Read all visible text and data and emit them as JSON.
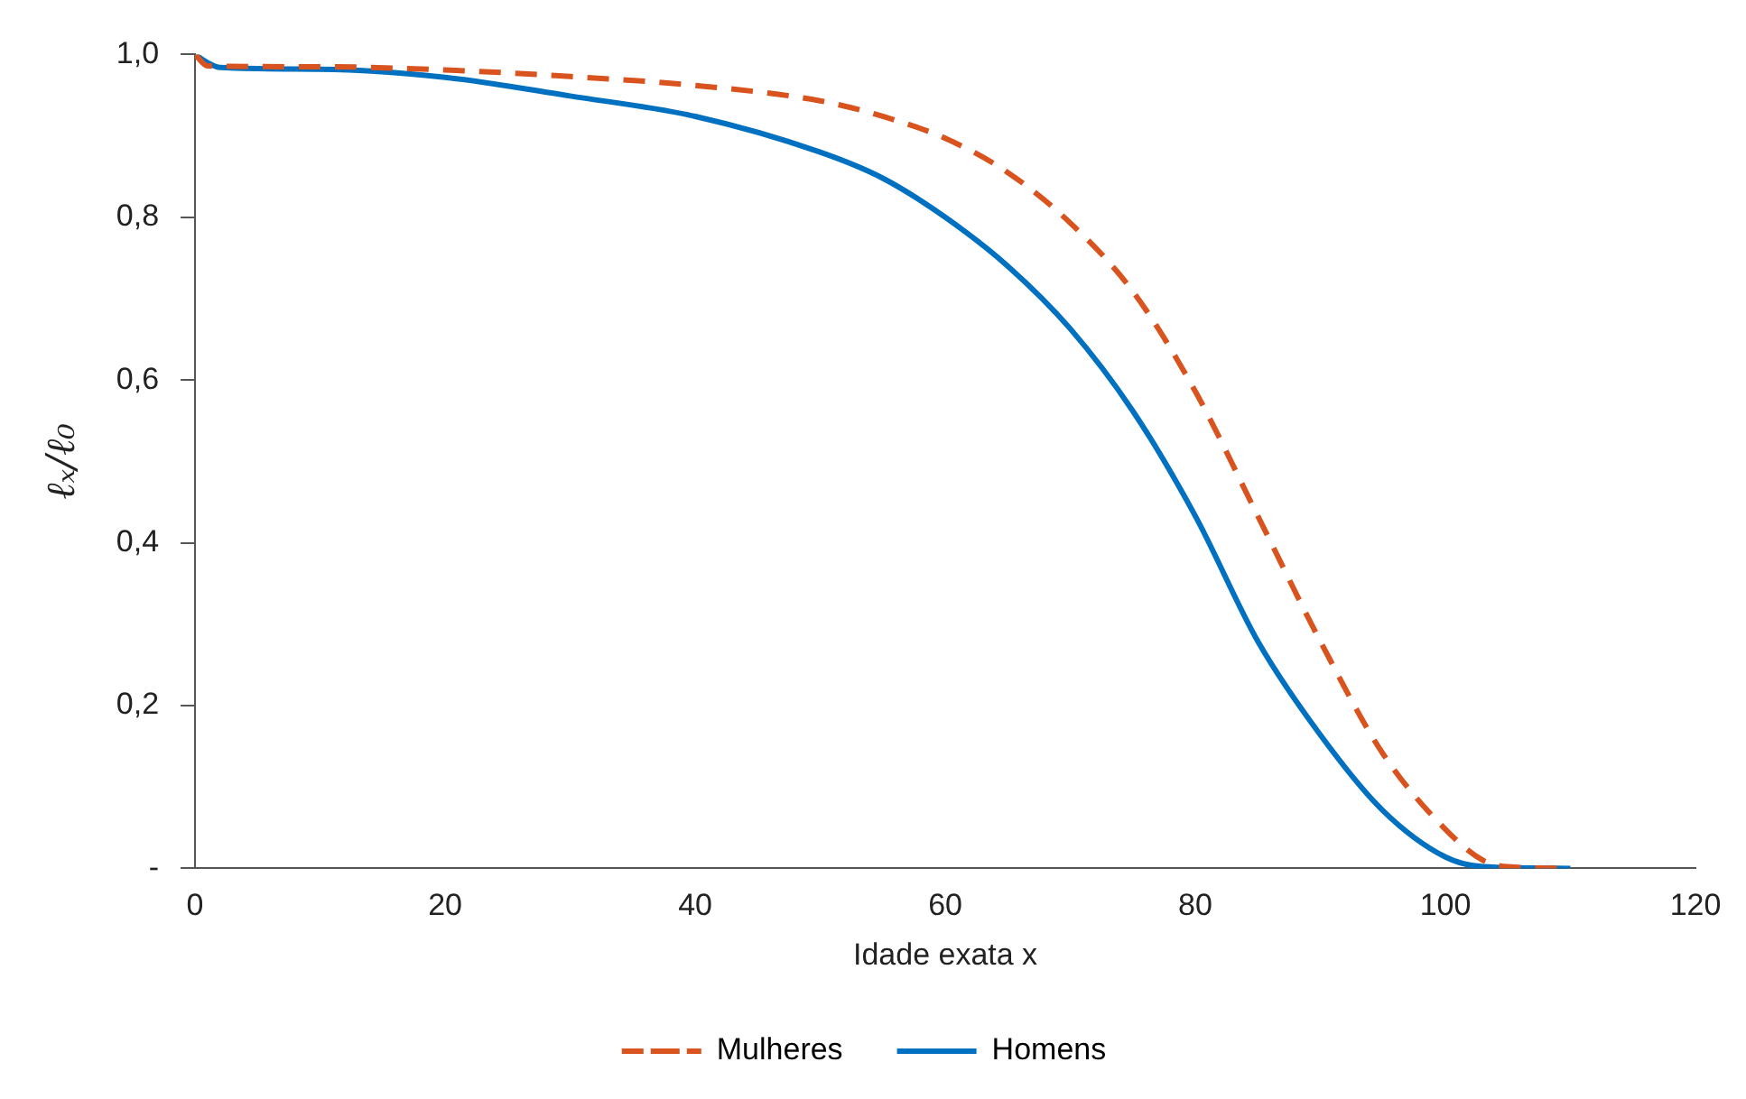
{
  "chart_data": {
    "type": "line",
    "xlabel": "Idade exata x",
    "ylabel": "ℓₓ/ℓ₀",
    "xlim": [
      0,
      120
    ],
    "xticks": [
      0,
      20,
      40,
      60,
      80,
      100,
      120
    ],
    "ylim": [
      0,
      1
    ],
    "yticks": [
      {
        "value": 0,
        "label": "-"
      },
      {
        "value": 0.2,
        "label": "0,2"
      },
      {
        "value": 0.4,
        "label": "0,4"
      },
      {
        "value": 0.6,
        "label": "0,6"
      },
      {
        "value": 0.8,
        "label": "0,8"
      },
      {
        "value": 1,
        "label": "1,0"
      }
    ],
    "grid": false,
    "legend": "bottom",
    "marker": "none",
    "series": [
      {
        "name": "Mulheres",
        "color": "#d9531e",
        "line_style": "dashed",
        "x": [
          0,
          1,
          10,
          20,
          30,
          40,
          50,
          55,
          60,
          65,
          70,
          75,
          80,
          85,
          90,
          95,
          100,
          103,
          105,
          110
        ],
        "values": [
          1.0,
          0.986,
          0.985,
          0.981,
          0.973,
          0.962,
          0.943,
          0.924,
          0.897,
          0.855,
          0.793,
          0.709,
          0.586,
          0.433,
          0.279,
          0.141,
          0.048,
          0.01,
          0.002,
          0
        ]
      },
      {
        "name": "Homens",
        "color": "#0070c0",
        "line_style": "solid",
        "x": [
          0,
          1,
          2,
          10,
          20,
          30,
          40,
          50,
          55,
          60,
          65,
          70,
          75,
          80,
          85,
          90,
          95,
          100,
          103,
          110
        ],
        "values": [
          1.0,
          0.99,
          0.984,
          0.982,
          0.972,
          0.949,
          0.924,
          0.88,
          0.848,
          0.8,
          0.74,
          0.663,
          0.562,
          0.433,
          0.279,
          0.164,
          0.071,
          0.014,
          0.002,
          0
        ]
      }
    ]
  }
}
